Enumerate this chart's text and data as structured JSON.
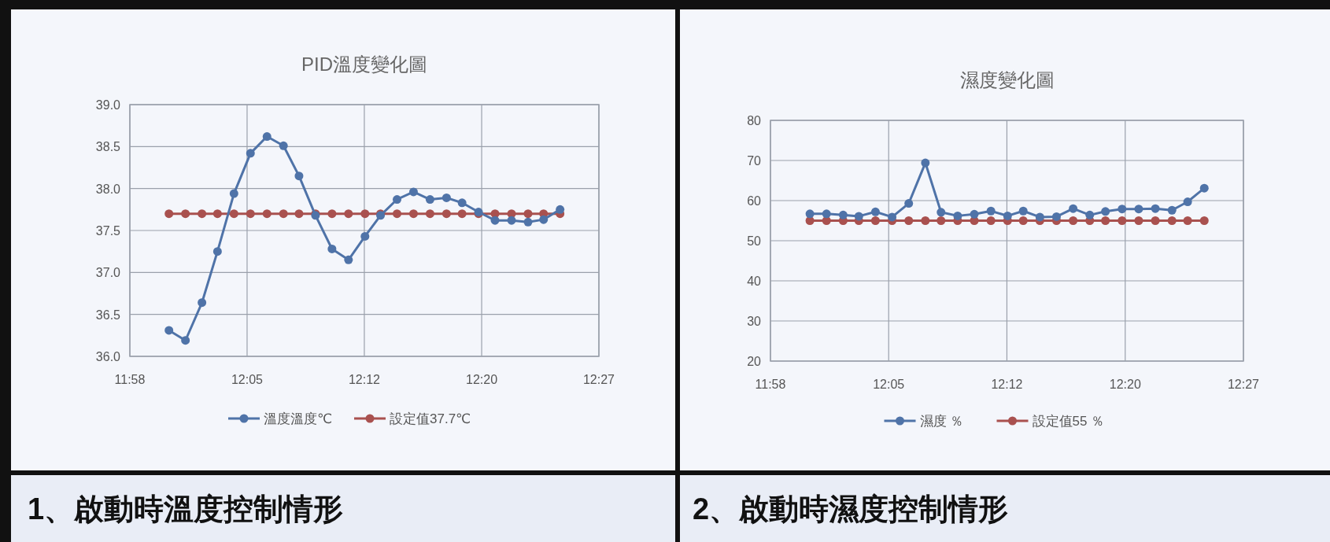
{
  "chart_data": [
    {
      "type": "line",
      "title": "PID溫度變化圖",
      "annotations": [
        "1、啟動時溫度控制情形"
      ],
      "x": [
        12.007,
        12.024,
        12.041,
        12.057,
        12.074,
        12.091,
        12.108,
        12.125,
        12.141,
        12.158,
        12.175,
        12.192,
        12.209,
        12.225,
        12.242,
        12.259,
        12.276,
        12.293,
        12.309,
        12.326,
        12.343,
        12.36,
        12.377,
        12.393,
        12.41
      ],
      "series": [
        {
          "name": "溫度溫度℃",
          "color": "#4f73a8",
          "values": [
            36.31,
            36.19,
            36.64,
            37.25,
            37.94,
            38.42,
            38.62,
            38.51,
            38.15,
            37.68,
            37.28,
            37.15,
            37.43,
            37.68,
            37.87,
            37.96,
            37.87,
            37.89,
            37.83,
            37.72,
            37.62,
            37.62,
            37.6,
            37.63,
            37.75
          ]
        },
        {
          "name": "設定值37.7℃",
          "color": "#a9514f",
          "values": [
            37.7,
            37.7,
            37.7,
            37.7,
            37.7,
            37.7,
            37.7,
            37.7,
            37.7,
            37.7,
            37.7,
            37.7,
            37.7,
            37.7,
            37.7,
            37.7,
            37.7,
            37.7,
            37.7,
            37.7,
            37.7,
            37.7,
            37.7,
            37.7,
            37.7
          ]
        }
      ],
      "xlim": [
        11.9667,
        12.45
      ],
      "xticks": [
        {
          "value": 11.9667,
          "label": "11:58"
        },
        {
          "value": 12.0875,
          "label": "12:05"
        },
        {
          "value": 12.2083,
          "label": "12:12"
        },
        {
          "value": 12.3292,
          "label": "12:20"
        },
        {
          "value": 12.45,
          "label": "12:27"
        }
      ],
      "ylim": [
        36,
        39
      ],
      "yticks": [
        {
          "value": 36,
          "label": "36.0"
        },
        {
          "value": 36.5,
          "label": "36.5"
        },
        {
          "value": 37,
          "label": "37.0"
        },
        {
          "value": 37.5,
          "label": "37.5"
        },
        {
          "value": 38,
          "label": "38.0"
        },
        {
          "value": 38.5,
          "label": "38.5"
        },
        {
          "value": 39,
          "label": "39.0"
        }
      ],
      "grid": true,
      "legend": "bottom",
      "marker": "circle",
      "line_style": "solid"
    },
    {
      "type": "line",
      "title": "濕度變化圖",
      "annotations": [
        "2、啟動時濕度控制情形"
      ],
      "x": [
        12.007,
        12.024,
        12.041,
        12.057,
        12.074,
        12.091,
        12.108,
        12.125,
        12.141,
        12.158,
        12.175,
        12.192,
        12.209,
        12.225,
        12.242,
        12.259,
        12.276,
        12.293,
        12.309,
        12.326,
        12.343,
        12.36,
        12.377,
        12.393,
        12.41
      ],
      "series": [
        {
          "name": "濕度 ％",
          "color": "#4f73a8",
          "values": [
            56.7,
            56.7,
            56.4,
            56.1,
            57.2,
            55.9,
            59.3,
            69.4,
            57.1,
            56.2,
            56.6,
            57.4,
            56.2,
            57.4,
            55.9,
            56.0,
            58.0,
            56.4,
            57.3,
            57.9,
            57.9,
            58.0,
            57.6,
            59.7,
            63.1
          ]
        },
        {
          "name": "設定值55 ％",
          "color": "#a9514f",
          "values": [
            55,
            55,
            55,
            55,
            55,
            55,
            55,
            55,
            55,
            55,
            55,
            55,
            55,
            55,
            55,
            55,
            55,
            55,
            55,
            55,
            55,
            55,
            55,
            55,
            55
          ]
        }
      ],
      "xlim": [
        11.9667,
        12.45
      ],
      "xticks": [
        {
          "value": 11.9667,
          "label": "11:58"
        },
        {
          "value": 12.0875,
          "label": "12:05"
        },
        {
          "value": 12.2083,
          "label": "12:12"
        },
        {
          "value": 12.3292,
          "label": "12:20"
        },
        {
          "value": 12.45,
          "label": "12:27"
        }
      ],
      "ylim": [
        20,
        80
      ],
      "yticks": [
        20,
        30,
        40,
        50,
        60,
        70,
        80
      ],
      "grid": true,
      "legend": "bottom",
      "marker": "circle",
      "line_style": "solid"
    }
  ]
}
